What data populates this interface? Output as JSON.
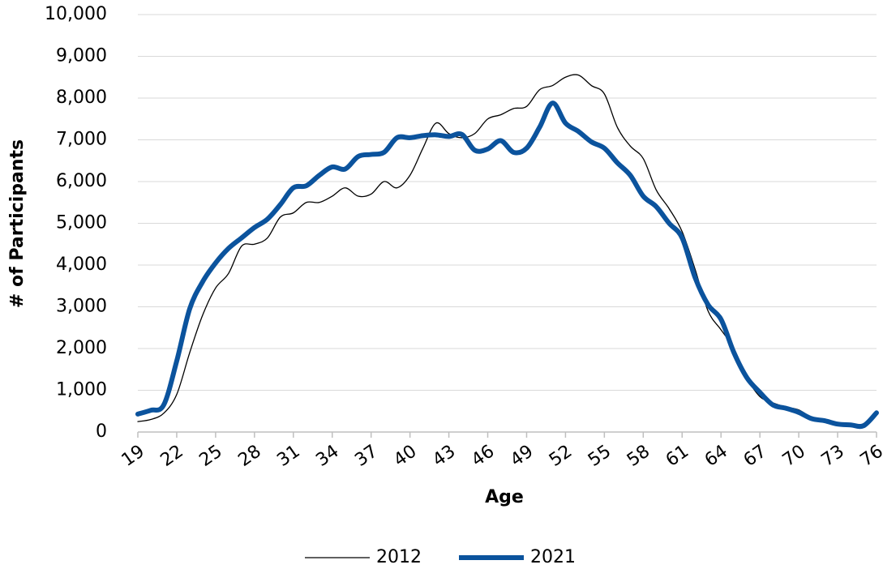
{
  "chart_data": {
    "type": "line",
    "x_label": "Age",
    "y_label": "# of Participants",
    "x": [
      19,
      20,
      21,
      22,
      23,
      24,
      25,
      26,
      27,
      28,
      29,
      30,
      31,
      32,
      33,
      34,
      35,
      36,
      37,
      38,
      39,
      40,
      41,
      42,
      43,
      44,
      45,
      46,
      47,
      48,
      49,
      50,
      51,
      52,
      53,
      54,
      55,
      56,
      57,
      58,
      59,
      60,
      61,
      62,
      63,
      64,
      65,
      66,
      67,
      68,
      69,
      70,
      71,
      72,
      73,
      74,
      75,
      76
    ],
    "xlim": [
      19,
      76
    ],
    "xticks": [
      19,
      22,
      25,
      28,
      31,
      34,
      37,
      40,
      43,
      46,
      49,
      52,
      55,
      58,
      61,
      64,
      67,
      70,
      73,
      76
    ],
    "ylim": [
      0,
      10000
    ],
    "yticks": [
      0,
      {
        "value": 1000,
        "label": "1,000"
      },
      {
        "value": 2000,
        "label": "2,000"
      },
      {
        "value": 3000,
        "label": "3,000"
      },
      {
        "value": 4000,
        "label": "4,000"
      },
      {
        "value": 5000,
        "label": "5,000"
      },
      {
        "value": 6000,
        "label": "6,000"
      },
      {
        "value": 7000,
        "label": "7,000"
      },
      {
        "value": 8000,
        "label": "8,000"
      },
      {
        "value": 9000,
        "label": "9,000"
      },
      {
        "value": 10000,
        "label": "10,000"
      }
    ],
    "grid": true,
    "legend": "bottom",
    "series": [
      {
        "name": "2012",
        "color": "#000000",
        "width": 1.3,
        "values": [
          250,
          300,
          450,
          900,
          1900,
          2800,
          3450,
          3800,
          4450,
          4500,
          4650,
          5150,
          5250,
          5500,
          5500,
          5650,
          5850,
          5650,
          5700,
          6000,
          5850,
          6150,
          6800,
          7400,
          7150,
          7050,
          7150,
          7500,
          7600,
          7750,
          7800,
          8200,
          8300,
          8500,
          8550,
          8300,
          8100,
          7300,
          6850,
          6550,
          5800,
          5350,
          4800,
          3900,
          2900,
          2450,
          2000,
          1300,
          850,
          700,
          600,
          530,
          350,
          270,
          210,
          200,
          200,
          500
        ]
      },
      {
        "name": "2021",
        "color": "#0b539d",
        "width": 6,
        "values": [
          430,
          520,
          650,
          1700,
          2950,
          3600,
          4050,
          4400,
          4650,
          4900,
          5100,
          5450,
          5850,
          5900,
          6150,
          6350,
          6300,
          6600,
          6650,
          6700,
          7050,
          7050,
          7100,
          7120,
          7080,
          7130,
          6750,
          6780,
          6980,
          6700,
          6800,
          7300,
          7880,
          7400,
          7200,
          6950,
          6800,
          6450,
          6150,
          5650,
          5400,
          5000,
          4650,
          3700,
          3050,
          2700,
          1900,
          1300,
          950,
          650,
          570,
          470,
          320,
          270,
          190,
          170,
          150,
          460
        ]
      }
    ]
  }
}
